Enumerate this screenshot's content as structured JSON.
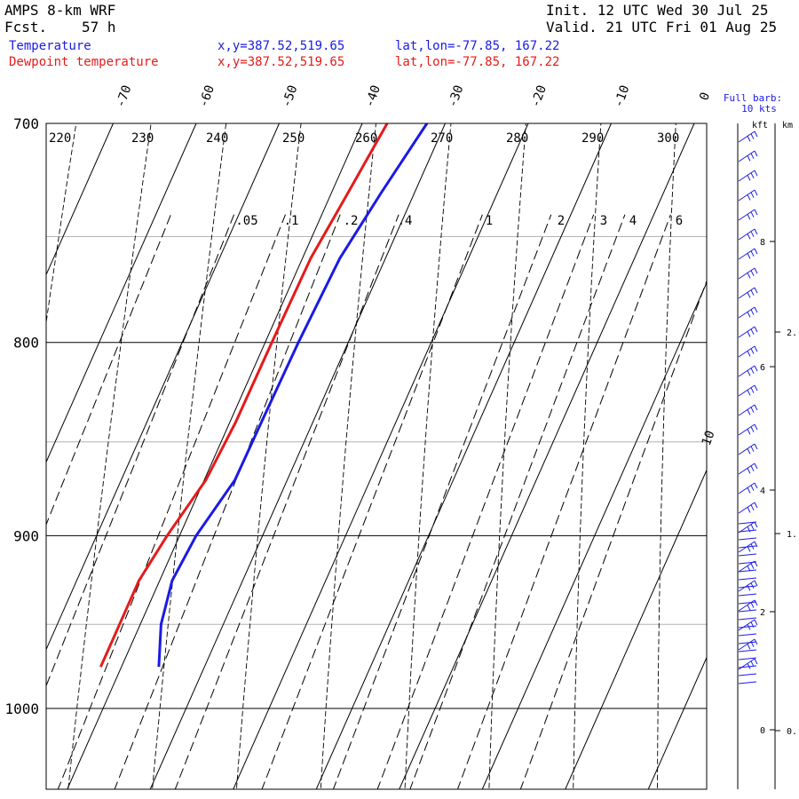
{
  "header": {
    "model": "AMPS 8-km WRF",
    "fcst_label": "Fcst.",
    "fcst_hours": "57 h",
    "init": "Init. 12 UTC Wed 30 Jul 25",
    "valid": "Valid. 21 UTC Fri 01 Aug 25"
  },
  "legend": {
    "temperature": {
      "name": "Temperature",
      "xy": "x,y=387.52,519.65",
      "latlon": "lat,lon=-77.85, 167.22",
      "color": "#1a1ae6"
    },
    "dewpoint": {
      "name": "Dewpoint temperature",
      "xy": "x,y=387.52,519.65",
      "latlon": "lat,lon=-77.85, 167.22",
      "color": "#e61a1a"
    }
  },
  "wind_panel": {
    "title_line1": "Full barb:",
    "title_line2": "10 kts",
    "units_kft": "kft",
    "units_km": "km",
    "kft_ticks": [
      "8",
      "6",
      "4",
      "2",
      "0"
    ],
    "km_ticks": [
      "2.",
      "1.",
      "0."
    ],
    "barb_color": "#1a1ae6"
  },
  "chart_data": {
    "type": "line",
    "diagram": "skew-T log-P",
    "y_axis": {
      "scale": "log",
      "range": [
        1040,
        700
      ],
      "ticks": [
        700,
        800,
        900,
        1000
      ]
    },
    "isotherm_labels": [
      -70,
      -60,
      -50,
      -40,
      -30,
      -20,
      -10,
      0,
      10
    ],
    "dry_adiabat_labels": [
      220,
      230,
      240,
      250,
      260,
      270,
      280,
      290,
      300
    ],
    "mixing_ratio_labels": [
      ".05",
      ".1",
      ".2",
      ".4",
      "1",
      "2",
      "3",
      "4",
      "6"
    ],
    "series": [
      {
        "name": "Temperature",
        "color": "#1a1ae6",
        "points": [
          [
            975,
            -35.5
          ],
          [
            950,
            -37.5
          ],
          [
            925,
            -38.5
          ],
          [
            900,
            -38
          ],
          [
            870,
            -36.3
          ],
          [
            840,
            -36.2
          ],
          [
            800,
            -36
          ],
          [
            760,
            -35.5
          ],
          [
            730,
            -34
          ],
          [
            700,
            -32.2
          ]
        ]
      },
      {
        "name": "Dewpoint temperature",
        "color": "#e61a1a",
        "points": [
          [
            975,
            -42.5
          ],
          [
            950,
            -42.5
          ],
          [
            925,
            -42.5
          ],
          [
            900,
            -41.5
          ],
          [
            870,
            -39.8
          ],
          [
            840,
            -39.3
          ],
          [
            800,
            -39.2
          ],
          [
            760,
            -39
          ],
          [
            730,
            -38
          ],
          [
            700,
            -37
          ]
        ]
      }
    ]
  }
}
